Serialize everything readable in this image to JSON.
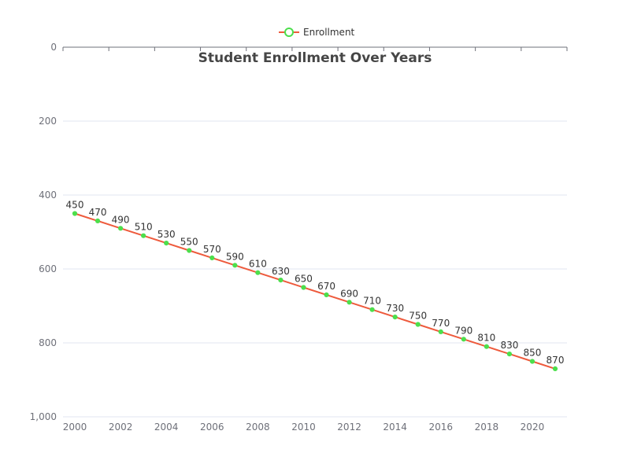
{
  "chart_data": {
    "type": "line",
    "title": "Student Enrollment Over Years",
    "legend": {
      "position": "top-center",
      "entries": [
        "Enrollment"
      ]
    },
    "x": [
      2000,
      2001,
      2002,
      2003,
      2004,
      2005,
      2006,
      2007,
      2008,
      2009,
      2010,
      2011,
      2012,
      2013,
      2014,
      2015,
      2016,
      2017,
      2018,
      2019,
      2020,
      2021
    ],
    "x_ticks": [
      "2000",
      "2002",
      "2004",
      "2006",
      "2008",
      "2010",
      "2012",
      "2014",
      "2016",
      "2018",
      "2020"
    ],
    "series": [
      {
        "name": "Enrollment",
        "values": [
          450,
          470,
          490,
          510,
          530,
          550,
          570,
          590,
          610,
          630,
          650,
          670,
          690,
          710,
          730,
          750,
          770,
          790,
          810,
          830,
          850,
          870
        ],
        "line_color": "#ee5a3c",
        "marker_color": "#4cdf4c"
      }
    ],
    "y_ticks": [
      "0",
      "200",
      "400",
      "600",
      "800",
      "1,000"
    ],
    "y_tick_values": [
      0,
      200,
      400,
      600,
      800,
      1000
    ],
    "ylim": [
      0,
      1000
    ],
    "y_inverted": true,
    "x_axis_position": "top",
    "grid": true
  }
}
